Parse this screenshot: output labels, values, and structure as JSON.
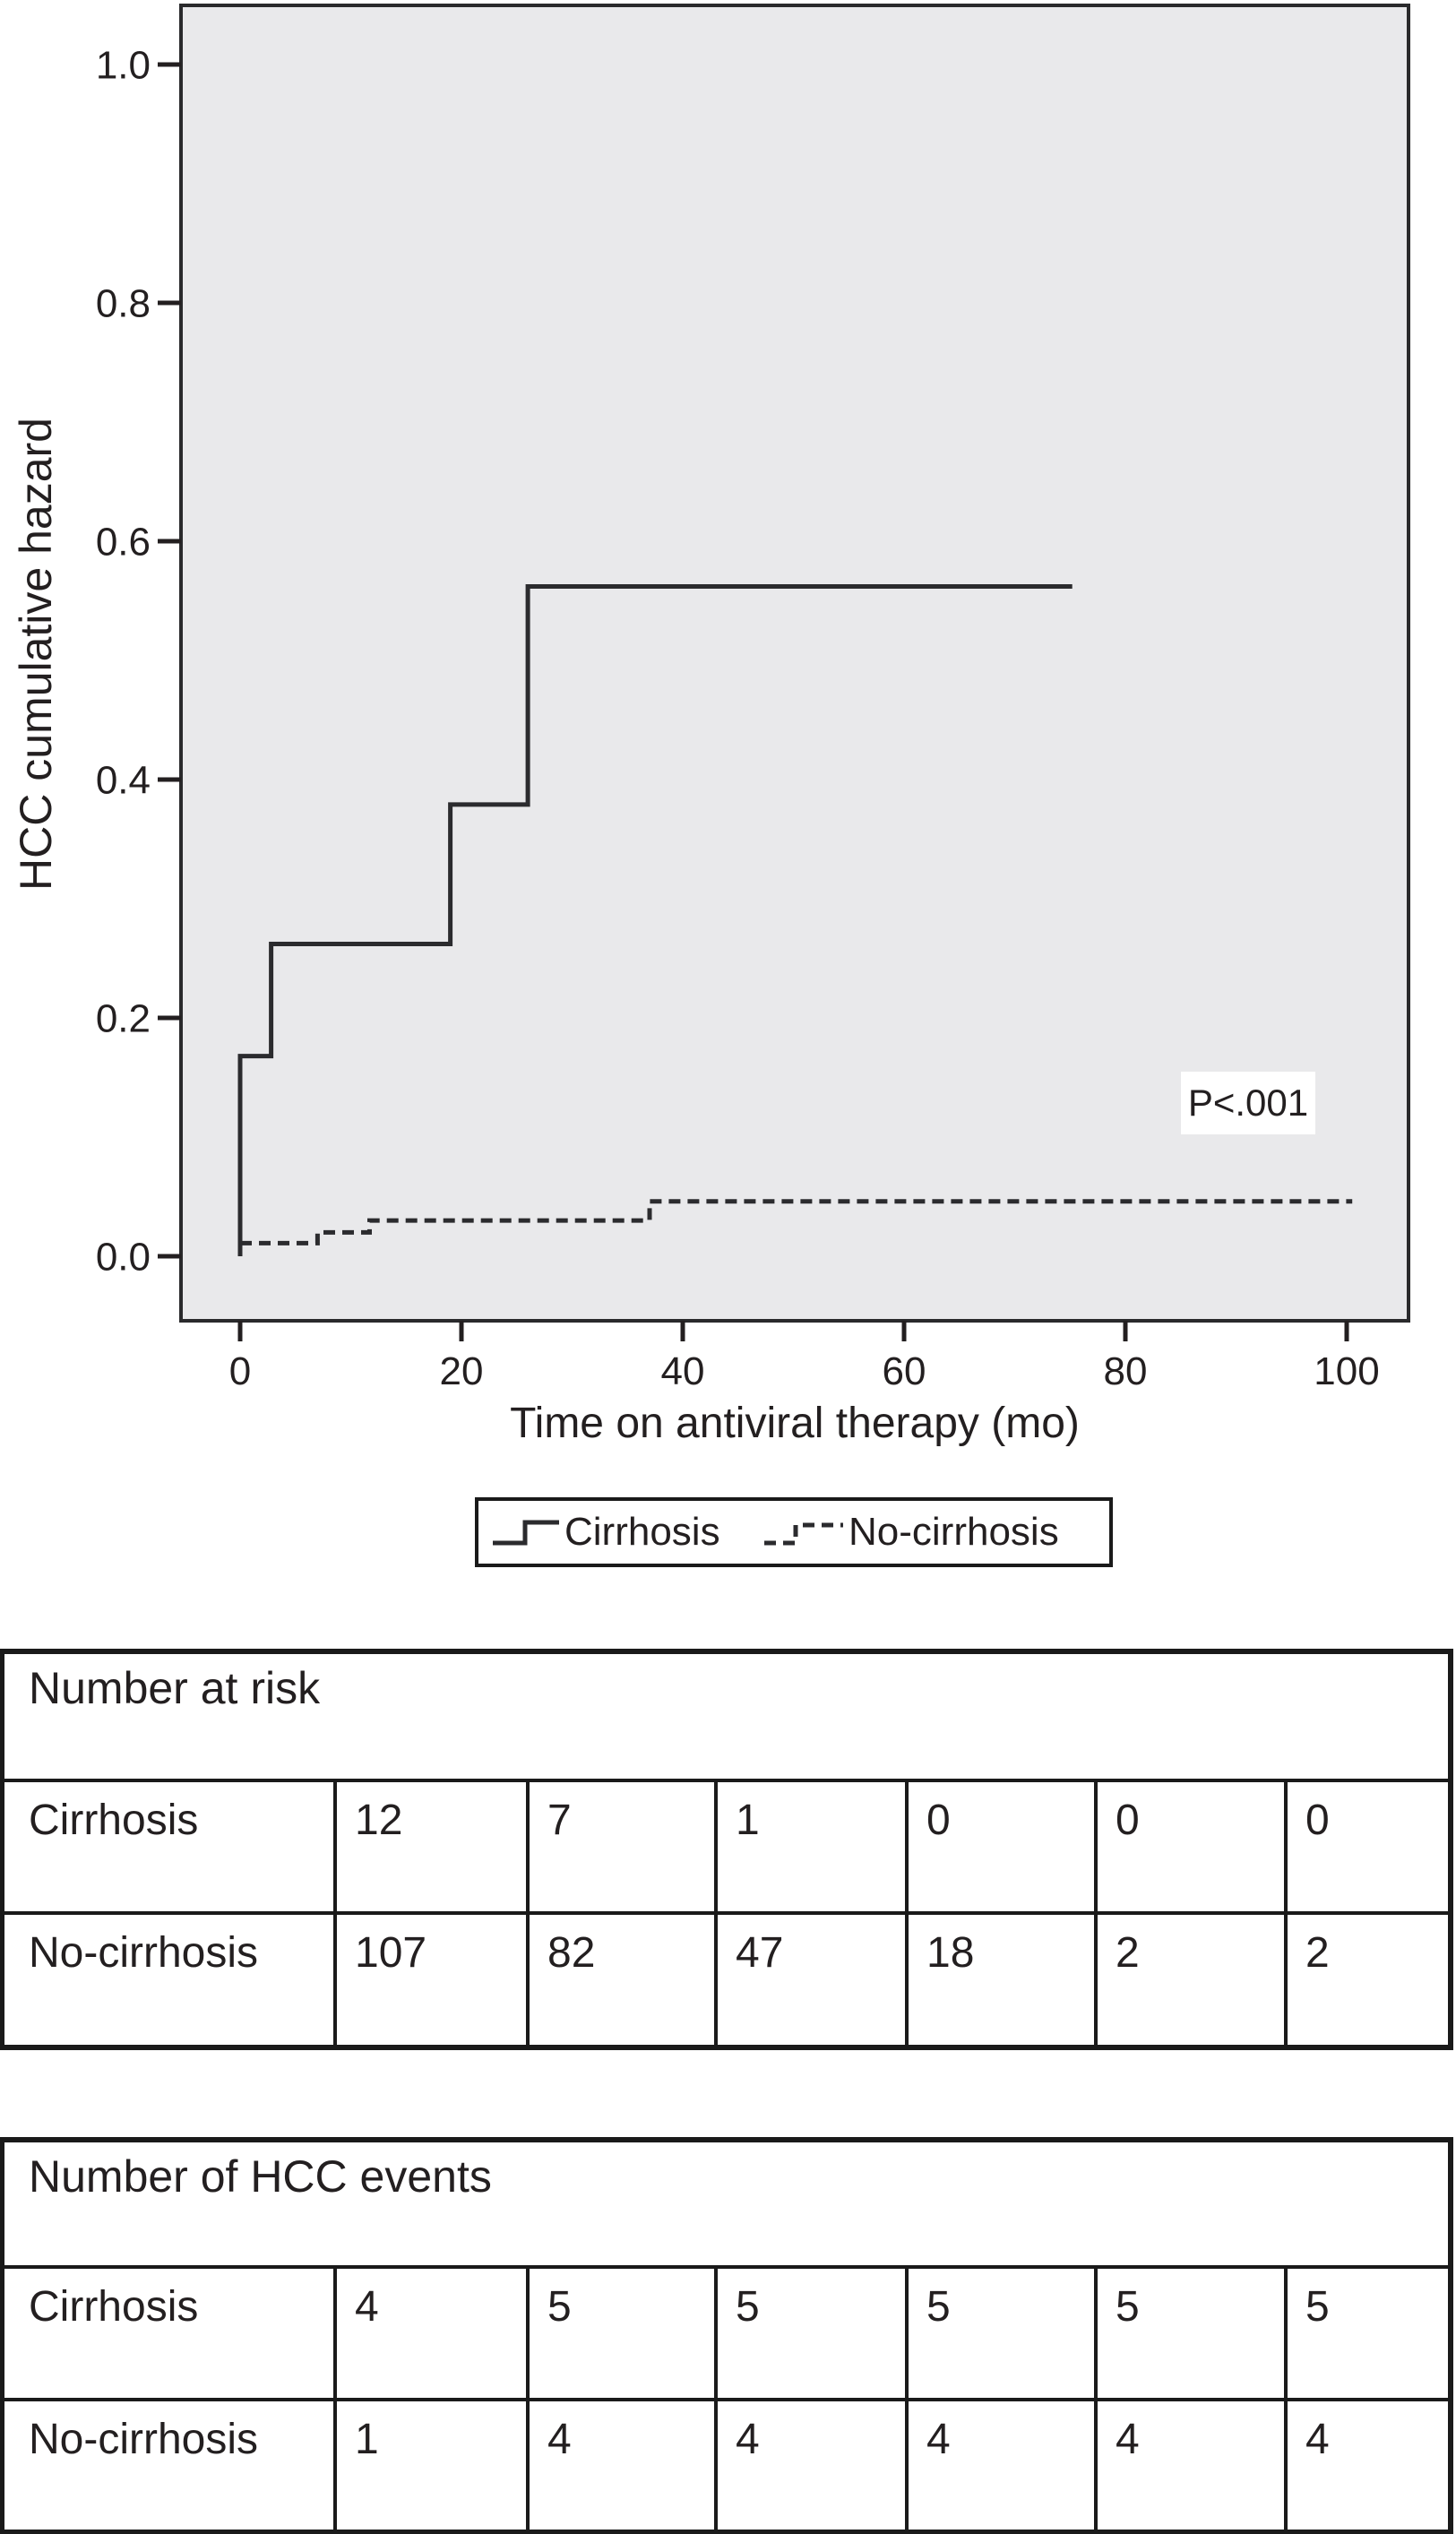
{
  "chart_data": {
    "type": "line",
    "subtype": "step-cumulative-hazard",
    "title": "",
    "xlabel": "Time on antiviral therapy (mo)",
    "ylabel": "HCC cumulative hazard",
    "xlim": [
      -5,
      106
    ],
    "ylim": [
      -0.054,
      1.06
    ],
    "x_ticks": [
      0,
      20,
      40,
      60,
      80,
      100
    ],
    "y_ticks": [
      "0.0",
      "0.2",
      "0.4",
      "0.6",
      "0.8",
      "1.0"
    ],
    "grid": false,
    "legend_position": "below-axis",
    "annotation": "P<.001",
    "series": [
      {
        "name": "Cirrhosis",
        "style": "solid",
        "x": [
          0,
          0,
          2.8,
          2.8,
          19,
          19,
          26,
          26,
          75.2
        ],
        "y": [
          0,
          0.168,
          0.168,
          0.262,
          0.262,
          0.379,
          0.379,
          0.562,
          0.562
        ]
      },
      {
        "name": "No-cirrhosis",
        "style": "dashed",
        "x": [
          0,
          7,
          7,
          11.7,
          11.7,
          37,
          37,
          100.5
        ],
        "y": [
          0.011,
          0.011,
          0.02,
          0.02,
          0.03,
          0.03,
          0.046,
          0.046
        ]
      }
    ]
  },
  "legend": {
    "items": [
      {
        "label": "Cirrhosis",
        "line": "solid"
      },
      {
        "label": "No-cirrhosis",
        "line": "dashed"
      }
    ]
  },
  "annotation_box": {
    "text": "P<.001"
  },
  "tables": [
    {
      "title": "Number at risk",
      "rows": [
        {
          "label": "Cirrhosis",
          "values": [
            12,
            7,
            1,
            0,
            0,
            0
          ]
        },
        {
          "label": "No-cirrhosis",
          "values": [
            107,
            82,
            47,
            18,
            2,
            2
          ]
        }
      ]
    },
    {
      "title": "Number of HCC events",
      "rows": [
        {
          "label": "Cirrhosis",
          "values": [
            4,
            5,
            5,
            5,
            5,
            5
          ]
        },
        {
          "label": "No-cirrhosis",
          "values": [
            1,
            4,
            4,
            4,
            4,
            4
          ]
        }
      ]
    }
  ],
  "colors": {
    "ink": "#231f20",
    "line": "#2b2b2e",
    "plot_background": "#e9e9eb",
    "page_background": "#ffffff",
    "annotation_background": "#ffffff"
  }
}
